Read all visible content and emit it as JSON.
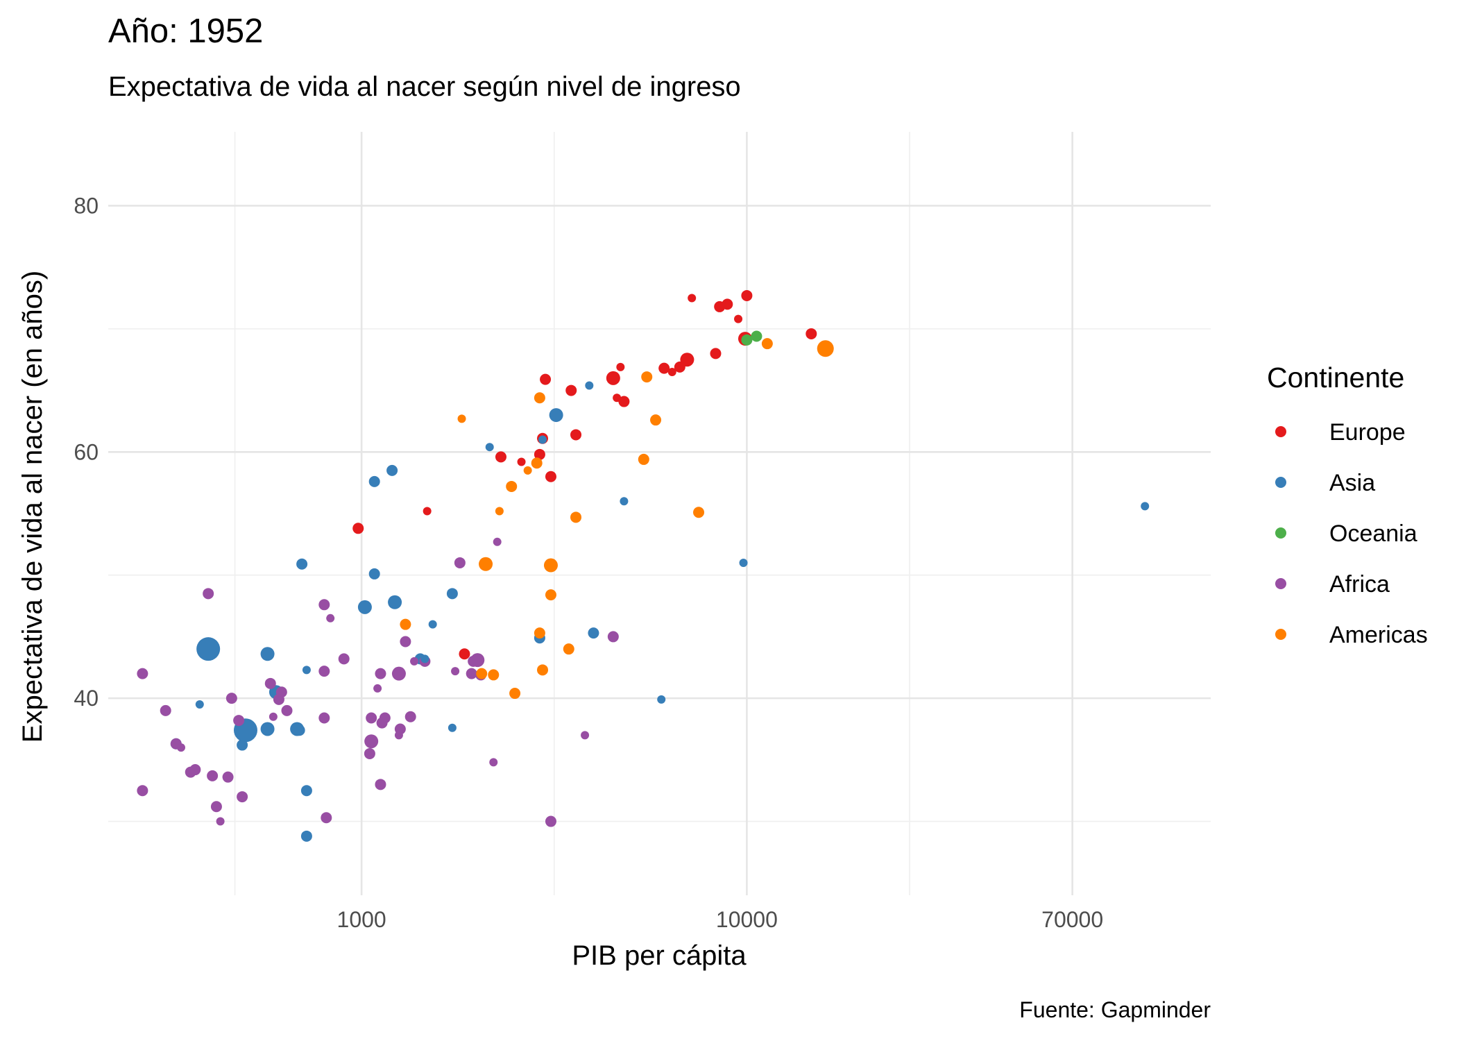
{
  "chart_data": {
    "type": "scatter",
    "title": "Año: 1952",
    "subtitle": "Expectativa de vida al nacer según nivel de ingreso",
    "xlabel": "PIB per cápita",
    "ylabel": "Expectativa de vida al nacer (en años)",
    "caption": "Fuente: Gapminder",
    "x_scale": "log10",
    "x_ticks": [
      1000,
      10000,
      70000
    ],
    "x_tick_labels": [
      "1000",
      "10000",
      "70000"
    ],
    "y_ticks": [
      40,
      60,
      80
    ],
    "y_tick_labels": [
      "40",
      "60",
      "80"
    ],
    "xlim": [
      220,
      160000
    ],
    "ylim": [
      24,
      86
    ],
    "grid": true,
    "legend": {
      "title": "Continente",
      "position": "right",
      "entries": [
        {
          "name": "Europe",
          "color": "#E41A1C"
        },
        {
          "name": "Asia",
          "color": "#377EB8"
        },
        {
          "name": "Oceania",
          "color": "#4DAF4A"
        },
        {
          "name": "Africa",
          "color": "#984EA3"
        },
        {
          "name": "Americas",
          "color": "#FF7F00"
        }
      ]
    },
    "series": [
      {
        "name": "Europe",
        "color": "#E41A1C",
        "points": [
          {
            "x": 7200,
            "y": 72.5,
            "s": 1
          },
          {
            "x": 8500,
            "y": 71.8,
            "s": 2
          },
          {
            "x": 8900,
            "y": 72.0,
            "s": 2
          },
          {
            "x": 10000,
            "y": 72.7,
            "s": 2
          },
          {
            "x": 9500,
            "y": 70.8,
            "s": 1
          },
          {
            "x": 9900,
            "y": 69.2,
            "s": 3
          },
          {
            "x": 14700,
            "y": 69.6,
            "s": 2
          },
          {
            "x": 8300,
            "y": 68.0,
            "s": 2
          },
          {
            "x": 7000,
            "y": 67.5,
            "s": 3
          },
          {
            "x": 6700,
            "y": 66.9,
            "s": 2
          },
          {
            "x": 6100,
            "y": 66.8,
            "s": 2
          },
          {
            "x": 6400,
            "y": 66.5,
            "s": 1
          },
          {
            "x": 4700,
            "y": 66.9,
            "s": 1
          },
          {
            "x": 4500,
            "y": 66.0,
            "s": 3
          },
          {
            "x": 3000,
            "y": 65.9,
            "s": 2
          },
          {
            "x": 3500,
            "y": 65.0,
            "s": 2
          },
          {
            "x": 4800,
            "y": 64.1,
            "s": 2
          },
          {
            "x": 4600,
            "y": 64.4,
            "s": 1
          },
          {
            "x": 3600,
            "y": 61.4,
            "s": 2
          },
          {
            "x": 2950,
            "y": 61.1,
            "s": 2
          },
          {
            "x": 2900,
            "y": 59.8,
            "s": 2
          },
          {
            "x": 2300,
            "y": 59.6,
            "s": 2
          },
          {
            "x": 2600,
            "y": 59.2,
            "s": 1
          },
          {
            "x": 3100,
            "y": 58.0,
            "s": 2
          },
          {
            "x": 1480,
            "y": 55.2,
            "s": 1
          },
          {
            "x": 980,
            "y": 53.8,
            "s": 2
          },
          {
            "x": 1850,
            "y": 43.6,
            "s": 2
          }
        ]
      },
      {
        "name": "Asia",
        "color": "#377EB8",
        "points": [
          {
            "x": 2950,
            "y": 61.0,
            "s": 1
          },
          {
            "x": 3200,
            "y": 63.0,
            "s": 3
          },
          {
            "x": 3900,
            "y": 65.4,
            "s": 1
          },
          {
            "x": 2150,
            "y": 60.4,
            "s": 1
          },
          {
            "x": 4800,
            "y": 56.0,
            "s": 1
          },
          {
            "x": 1200,
            "y": 58.5,
            "s": 2
          },
          {
            "x": 1080,
            "y": 57.6,
            "s": 2
          },
          {
            "x": 108000,
            "y": 55.6,
            "s": 1
          },
          {
            "x": 9800,
            "y": 51.0,
            "s": 1
          },
          {
            "x": 700,
            "y": 50.9,
            "s": 2
          },
          {
            "x": 1080,
            "y": 50.1,
            "s": 2
          },
          {
            "x": 1720,
            "y": 48.5,
            "s": 2
          },
          {
            "x": 1220,
            "y": 47.8,
            "s": 3
          },
          {
            "x": 1020,
            "y": 47.4,
            "s": 3
          },
          {
            "x": 1530,
            "y": 46.0,
            "s": 1
          },
          {
            "x": 4000,
            "y": 45.3,
            "s": 2
          },
          {
            "x": 2900,
            "y": 44.9,
            "s": 2
          },
          {
            "x": 1420,
            "y": 43.2,
            "s": 2
          },
          {
            "x": 1460,
            "y": 43.2,
            "s": 1
          },
          {
            "x": 570,
            "y": 43.6,
            "s": 3
          },
          {
            "x": 400,
            "y": 44.0,
            "s": 5
          },
          {
            "x": 720,
            "y": 42.3,
            "s": 1
          },
          {
            "x": 600,
            "y": 40.5,
            "s": 3
          },
          {
            "x": 380,
            "y": 39.5,
            "s": 1
          },
          {
            "x": 6000,
            "y": 39.9,
            "s": 1
          },
          {
            "x": 500,
            "y": 37.4,
            "s": 5
          },
          {
            "x": 570,
            "y": 37.5,
            "s": 3
          },
          {
            "x": 680,
            "y": 37.5,
            "s": 3
          },
          {
            "x": 690,
            "y": 37.4,
            "s": 2
          },
          {
            "x": 1720,
            "y": 37.6,
            "s": 1
          },
          {
            "x": 330,
            "y": 36.3,
            "s": 2
          },
          {
            "x": 490,
            "y": 36.2,
            "s": 2
          },
          {
            "x": 720,
            "y": 32.5,
            "s": 2
          },
          {
            "x": 720,
            "y": 28.8,
            "s": 2
          }
        ]
      },
      {
        "name": "Oceania",
        "color": "#4DAF4A",
        "points": [
          {
            "x": 10600,
            "y": 69.4,
            "s": 2
          },
          {
            "x": 10000,
            "y": 69.1,
            "s": 2
          }
        ]
      },
      {
        "name": "Africa",
        "color": "#984EA3",
        "points": [
          {
            "x": 2250,
            "y": 52.7,
            "s": 1
          },
          {
            "x": 1800,
            "y": 51.0,
            "s": 2
          },
          {
            "x": 400,
            "y": 48.5,
            "s": 2
          },
          {
            "x": 800,
            "y": 47.6,
            "s": 2
          },
          {
            "x": 830,
            "y": 46.5,
            "s": 1
          },
          {
            "x": 4500,
            "y": 45.0,
            "s": 2
          },
          {
            "x": 1300,
            "y": 44.6,
            "s": 2
          },
          {
            "x": 1950,
            "y": 43.0,
            "s": 2
          },
          {
            "x": 2000,
            "y": 43.1,
            "s": 3
          },
          {
            "x": 1460,
            "y": 43.0,
            "s": 2
          },
          {
            "x": 900,
            "y": 43.2,
            "s": 2
          },
          {
            "x": 1370,
            "y": 43.0,
            "s": 1
          },
          {
            "x": 1250,
            "y": 42.0,
            "s": 3
          },
          {
            "x": 1120,
            "y": 42.0,
            "s": 2
          },
          {
            "x": 1750,
            "y": 42.2,
            "s": 1
          },
          {
            "x": 1930,
            "y": 42.0,
            "s": 2
          },
          {
            "x": 2040,
            "y": 41.9,
            "s": 2
          },
          {
            "x": 800,
            "y": 42.2,
            "s": 2
          },
          {
            "x": 270,
            "y": 42.0,
            "s": 2
          },
          {
            "x": 580,
            "y": 41.2,
            "s": 2
          },
          {
            "x": 620,
            "y": 40.5,
            "s": 2
          },
          {
            "x": 1100,
            "y": 40.8,
            "s": 1
          },
          {
            "x": 460,
            "y": 40.0,
            "s": 2
          },
          {
            "x": 610,
            "y": 39.9,
            "s": 2
          },
          {
            "x": 310,
            "y": 39.0,
            "s": 2
          },
          {
            "x": 640,
            "y": 39.0,
            "s": 2
          },
          {
            "x": 590,
            "y": 38.5,
            "s": 1
          },
          {
            "x": 800,
            "y": 38.4,
            "s": 2
          },
          {
            "x": 480,
            "y": 38.2,
            "s": 2
          },
          {
            "x": 1150,
            "y": 38.4,
            "s": 2
          },
          {
            "x": 1340,
            "y": 38.5,
            "s": 2
          },
          {
            "x": 1060,
            "y": 38.4,
            "s": 2
          },
          {
            "x": 1130,
            "y": 38.0,
            "s": 2
          },
          {
            "x": 1260,
            "y": 37.5,
            "s": 2
          },
          {
            "x": 1250,
            "y": 37.0,
            "s": 1
          },
          {
            "x": 3800,
            "y": 37.0,
            "s": 1
          },
          {
            "x": 1060,
            "y": 36.5,
            "s": 3
          },
          {
            "x": 330,
            "y": 36.3,
            "s": 2
          },
          {
            "x": 340,
            "y": 36.0,
            "s": 1
          },
          {
            "x": 1050,
            "y": 35.5,
            "s": 2
          },
          {
            "x": 370,
            "y": 34.2,
            "s": 2
          },
          {
            "x": 360,
            "y": 34.0,
            "s": 2
          },
          {
            "x": 2200,
            "y": 34.8,
            "s": 1
          },
          {
            "x": 410,
            "y": 33.7,
            "s": 2
          },
          {
            "x": 450,
            "y": 33.6,
            "s": 2
          },
          {
            "x": 1120,
            "y": 33.0,
            "s": 2
          },
          {
            "x": 270,
            "y": 32.5,
            "s": 2
          },
          {
            "x": 490,
            "y": 32.0,
            "s": 2
          },
          {
            "x": 420,
            "y": 31.2,
            "s": 2
          },
          {
            "x": 430,
            "y": 30.0,
            "s": 1
          },
          {
            "x": 810,
            "y": 30.3,
            "s": 2
          },
          {
            "x": 3100,
            "y": 30.0,
            "s": 2
          }
        ]
      },
      {
        "name": "Americas",
        "color": "#FF7F00",
        "points": [
          {
            "x": 16000,
            "y": 68.4,
            "s": 4
          },
          {
            "x": 11300,
            "y": 68.8,
            "s": 2
          },
          {
            "x": 5500,
            "y": 66.1,
            "s": 2
          },
          {
            "x": 2900,
            "y": 64.4,
            "s": 2
          },
          {
            "x": 5800,
            "y": 62.6,
            "s": 2
          },
          {
            "x": 1820,
            "y": 62.7,
            "s": 1
          },
          {
            "x": 5400,
            "y": 59.4,
            "s": 2
          },
          {
            "x": 2850,
            "y": 59.1,
            "s": 2
          },
          {
            "x": 2700,
            "y": 58.5,
            "s": 1
          },
          {
            "x": 2450,
            "y": 57.2,
            "s": 2
          },
          {
            "x": 7500,
            "y": 55.1,
            "s": 2
          },
          {
            "x": 2280,
            "y": 55.2,
            "s": 1
          },
          {
            "x": 3600,
            "y": 54.7,
            "s": 2
          },
          {
            "x": 2100,
            "y": 50.9,
            "s": 3
          },
          {
            "x": 3100,
            "y": 50.8,
            "s": 3
          },
          {
            "x": 3100,
            "y": 48.4,
            "s": 2
          },
          {
            "x": 1300,
            "y": 46.0,
            "s": 2
          },
          {
            "x": 2900,
            "y": 45.3,
            "s": 2
          },
          {
            "x": 3450,
            "y": 44.0,
            "s": 2
          },
          {
            "x": 2950,
            "y": 42.3,
            "s": 2
          },
          {
            "x": 2050,
            "y": 42.0,
            "s": 2
          },
          {
            "x": 2200,
            "y": 41.9,
            "s": 2
          },
          {
            "x": 2500,
            "y": 40.4,
            "s": 2
          }
        ]
      }
    ]
  }
}
